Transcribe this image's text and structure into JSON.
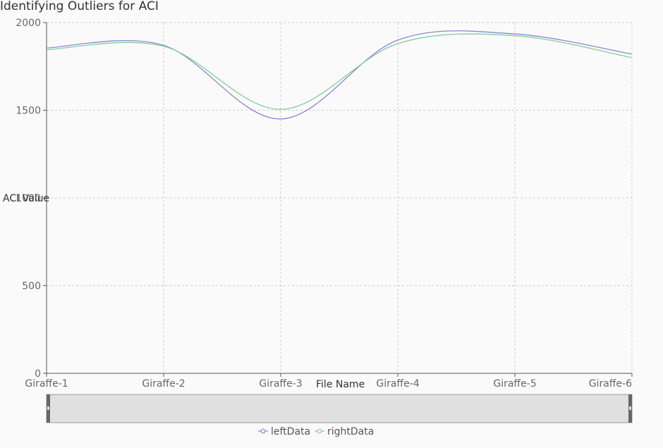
{
  "chart_data": {
    "type": "line",
    "title": "Identifying Outliers for ACI",
    "xlabel": "File Name",
    "ylabel": "ACI Value",
    "categories": [
      "Giraffe-1",
      "Giraffe-2",
      "Giraffe-3",
      "Giraffe-4",
      "Giraffe-5",
      "Giraffe-6"
    ],
    "ylim": [
      0,
      2000
    ],
    "yticks": [
      0,
      500,
      1000,
      1500,
      2000
    ],
    "grid": true,
    "smooth": true,
    "legend_position": "bottom",
    "series": [
      {
        "name": "leftData",
        "values": [
          1855,
          1870,
          1450,
          1900,
          1935,
          1820
        ],
        "color": "#8b86d1"
      },
      {
        "name": "rightData",
        "values": [
          1845,
          1865,
          1505,
          1880,
          1925,
          1800
        ],
        "color": "#7fcf9a"
      }
    ]
  },
  "colors": {
    "grid": "#cccccc",
    "axis": "#555555",
    "slider_fill": "#e0e0e0",
    "slider_handle": "#666666"
  }
}
